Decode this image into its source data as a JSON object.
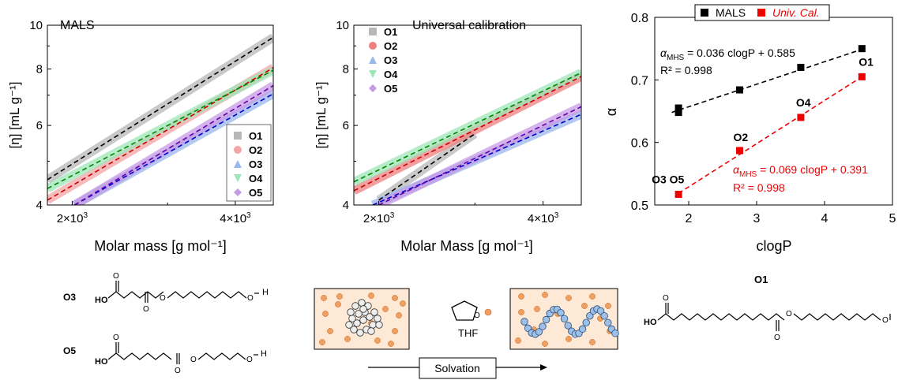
{
  "chart_data": [
    {
      "type": "line",
      "panel_label": "MALS",
      "xlabel": "Molar mass [g mol⁻¹]",
      "ylabel": "[η] [mL g⁻¹]",
      "x_scale": "log",
      "y_scale": "log",
      "xlim": [
        1800,
        4700
      ],
      "ylim": [
        4,
        10
      ],
      "x_ticks": [
        {
          "value": 2000,
          "label": "2×10³"
        },
        {
          "value": 4000,
          "label": "4×10³"
        }
      ],
      "y_ticks": [
        {
          "value": 4,
          "label": "4"
        },
        {
          "value": 6,
          "label": "6"
        },
        {
          "value": 8,
          "label": "8"
        },
        {
          "value": 10,
          "label": "10"
        }
      ],
      "legend_position": "bottom-right",
      "series": [
        {
          "name": "O1",
          "marker": "square",
          "color": "#b8b8b8",
          "line_color": "#000000",
          "x": [
            1800,
            4700
          ],
          "y": [
            4.55,
            9.4
          ]
        },
        {
          "name": "O2",
          "marker": "circle",
          "color": "#f5a5a5",
          "line_color": "#cc0000",
          "x": [
            1800,
            4700
          ],
          "y": [
            4.1,
            8.05
          ]
        },
        {
          "name": "O3",
          "marker": "triangle-up",
          "color": "#9ab8ee",
          "line_color": "#0000cc",
          "x": [
            2020,
            4700
          ],
          "y": [
            4.0,
            7.05
          ]
        },
        {
          "name": "O4",
          "marker": "triangle-down",
          "color": "#9ee6b8",
          "line_color": "#008800",
          "x": [
            1800,
            4700
          ],
          "y": [
            4.35,
            7.95
          ]
        },
        {
          "name": "O5",
          "marker": "diamond",
          "color": "#c79ae6",
          "line_color": "#6600aa",
          "x": [
            2020,
            4700
          ],
          "y": [
            4.0,
            7.35
          ]
        }
      ]
    },
    {
      "type": "line",
      "panel_label": "Universal calibration",
      "xlabel": "Molar Mass [g mol⁻¹]",
      "ylabel": "[η] [mL g⁻¹]",
      "x_scale": "log",
      "y_scale": "log",
      "xlim": [
        1800,
        4700
      ],
      "ylim": [
        4,
        10
      ],
      "x_ticks": [
        {
          "value": 2000,
          "label": "2×10³"
        },
        {
          "value": 4000,
          "label": "4×10³"
        }
      ],
      "y_ticks": [
        {
          "value": 4,
          "label": "4"
        },
        {
          "value": 6,
          "label": "6"
        },
        {
          "value": 8,
          "label": "8"
        },
        {
          "value": 10,
          "label": "10"
        }
      ],
      "legend_position": "top-left",
      "series": [
        {
          "name": "O1",
          "marker": "square",
          "color": "#b8b8b8",
          "line_color": "#000000",
          "x": [
            2000,
            3000
          ],
          "y": [
            4.1,
            5.75
          ]
        },
        {
          "name": "O2",
          "marker": "circle",
          "color": "#f08080",
          "line_color": "#cc0000",
          "x": [
            1800,
            4700
          ],
          "y": [
            4.3,
            7.7
          ]
        },
        {
          "name": "O3",
          "marker": "triangle-up",
          "color": "#9ab8ee",
          "line_color": "#0000cc",
          "x": [
            1950,
            4700
          ],
          "y": [
            4.0,
            6.35
          ]
        },
        {
          "name": "O4",
          "marker": "triangle-down",
          "color": "#9ee6b8",
          "line_color": "#008800",
          "x": [
            1800,
            4700
          ],
          "y": [
            4.5,
            7.85
          ]
        },
        {
          "name": "O5",
          "marker": "diamond",
          "color": "#c79ae6",
          "line_color": "#6600aa",
          "x": [
            2000,
            4700
          ],
          "y": [
            4.0,
            6.6
          ]
        }
      ]
    },
    {
      "type": "scatter",
      "xlabel": "clogP",
      "ylabel": "α",
      "xlim": [
        1.5,
        5
      ],
      "ylim": [
        0.5,
        0.8
      ],
      "x_ticks": [
        2,
        3,
        4,
        5
      ],
      "y_ticks": [
        0.5,
        0.6,
        0.7,
        0.8
      ],
      "legend_position": "top",
      "series": [
        {
          "name": "MALS",
          "color": "#000000",
          "x": [
            1.85,
            1.85,
            2.75,
            3.65,
            4.55
          ],
          "y": [
            0.648,
            0.655,
            0.684,
            0.72,
            0.75
          ],
          "fit": {
            "slope": 0.036,
            "intercept": 0.585,
            "x": [
              1.75,
              4.6
            ]
          },
          "equation": {
            "alpha": "α",
            "sub": "MHS",
            "rhs": " = 0.036 clogP + 0.585",
            "r2": "R² = 0.998"
          }
        },
        {
          "name": "Univ. Cal.",
          "color": "#ee0000",
          "x": [
            1.85,
            2.75,
            3.65,
            4.55
          ],
          "y": [
            0.517,
            0.587,
            0.64,
            0.705
          ],
          "fit": {
            "slope": 0.069,
            "intercept": 0.391,
            "x": [
              1.85,
              4.6
            ]
          },
          "equation": {
            "alpha": "α",
            "sub": "MHS",
            "rhs": " = 0.069 clogP + 0.391",
            "r2": "R² = 0.998"
          }
        }
      ],
      "point_labels": [
        {
          "text": "O3 O5",
          "x": 1.85,
          "y": 0.517
        },
        {
          "text": "O2",
          "x": 2.75,
          "y": 0.587
        },
        {
          "text": "O4",
          "x": 3.65,
          "y": 0.64
        },
        {
          "text": "O1",
          "x": 4.55,
          "y": 0.705
        }
      ]
    }
  ],
  "structures": {
    "o3_label": "O3",
    "o5_label": "O5",
    "o1_label": "O1",
    "ho": "HO",
    "h": "H",
    "o_atom": "O"
  },
  "scheme": {
    "solvent_label": "THF",
    "arrow_label": "Solvation"
  }
}
